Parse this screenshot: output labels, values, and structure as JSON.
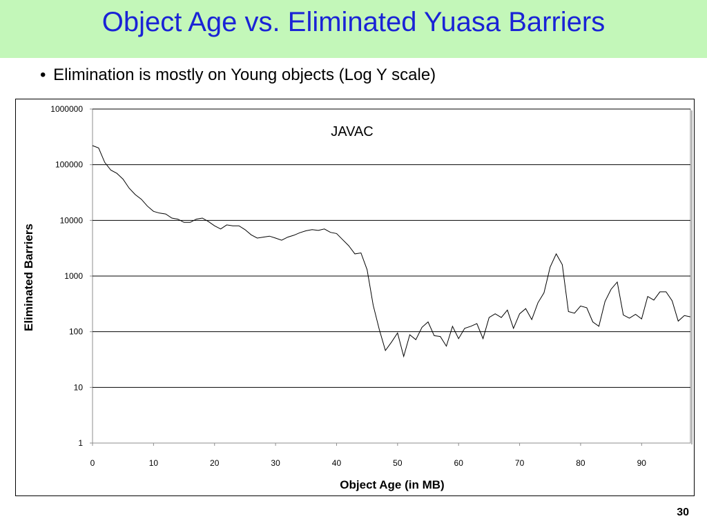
{
  "slide": {
    "title": "Object Age vs. Eliminated Yuasa Barriers",
    "bullet_marker": "•",
    "bullet": "Elimination is mostly on Young objects (Log Y scale)",
    "page_number": "30",
    "title_band_color": "#c3f7b9",
    "title_color": "#1a23d6"
  },
  "chart_data": {
    "type": "line",
    "title": "JAVAC",
    "xlabel": "Object Age (in MB)",
    "ylabel": "Eliminated Barriers",
    "yscale": "log",
    "ylim": [
      1,
      1000000
    ],
    "xlim": [
      0,
      98
    ],
    "x_ticks": [
      0,
      10,
      20,
      30,
      40,
      50,
      60,
      70,
      80,
      90
    ],
    "y_ticks": [
      1,
      10,
      100,
      1000,
      10000,
      100000,
      1000000
    ],
    "y_tick_labels": [
      "1",
      "10",
      "100",
      "1000",
      "10000",
      "100000",
      "1000000"
    ],
    "grid": "horizontal",
    "legend": "none",
    "line_color": "#000000",
    "series": [
      {
        "x": [
          0,
          1,
          2,
          3,
          4,
          5,
          6,
          7,
          8,
          9,
          10,
          11,
          12,
          13,
          14,
          15,
          16,
          17,
          18,
          19,
          20,
          21,
          22,
          23,
          24,
          25,
          26,
          27,
          28,
          29,
          30,
          31,
          32,
          33,
          34,
          35,
          36,
          37,
          38,
          39,
          40,
          41,
          42,
          43,
          44,
          45,
          46,
          47,
          48,
          49,
          50,
          51,
          52,
          53,
          54,
          55,
          56,
          57,
          58,
          59,
          60,
          61,
          62,
          63,
          64,
          65,
          66,
          67,
          68,
          69,
          70,
          71,
          72,
          73,
          74,
          75,
          76,
          77,
          78,
          79,
          80,
          81,
          82,
          83,
          84,
          85,
          86,
          87,
          88,
          89,
          90,
          91,
          92,
          93,
          94,
          95,
          96,
          97,
          98
        ],
        "values": [
          220000,
          200000,
          110000,
          80000,
          70000,
          55000,
          38000,
          29000,
          24000,
          18000,
          14500,
          13500,
          13000,
          11000,
          10500,
          9200,
          9200,
          10500,
          11000,
          9500,
          8000,
          7000,
          8300,
          8000,
          8000,
          6800,
          5500,
          4800,
          5000,
          5200,
          4800,
          4400,
          5000,
          5400,
          6000,
          6500,
          6800,
          6600,
          7000,
          6100,
          5800,
          4500,
          3500,
          2500,
          2600,
          1300,
          300,
          110,
          46,
          65,
          95,
          36,
          88,
          72,
          120,
          150,
          85,
          82,
          55,
          125,
          75,
          115,
          125,
          140,
          75,
          180,
          210,
          180,
          245,
          115,
          210,
          260,
          165,
          330,
          500,
          1450,
          2500,
          1600,
          230,
          215,
          290,
          270,
          150,
          125,
          350,
          580,
          780,
          200,
          175,
          205,
          170,
          430,
          370,
          520,
          520,
          360,
          155,
          195,
          185
        ]
      }
    ]
  }
}
